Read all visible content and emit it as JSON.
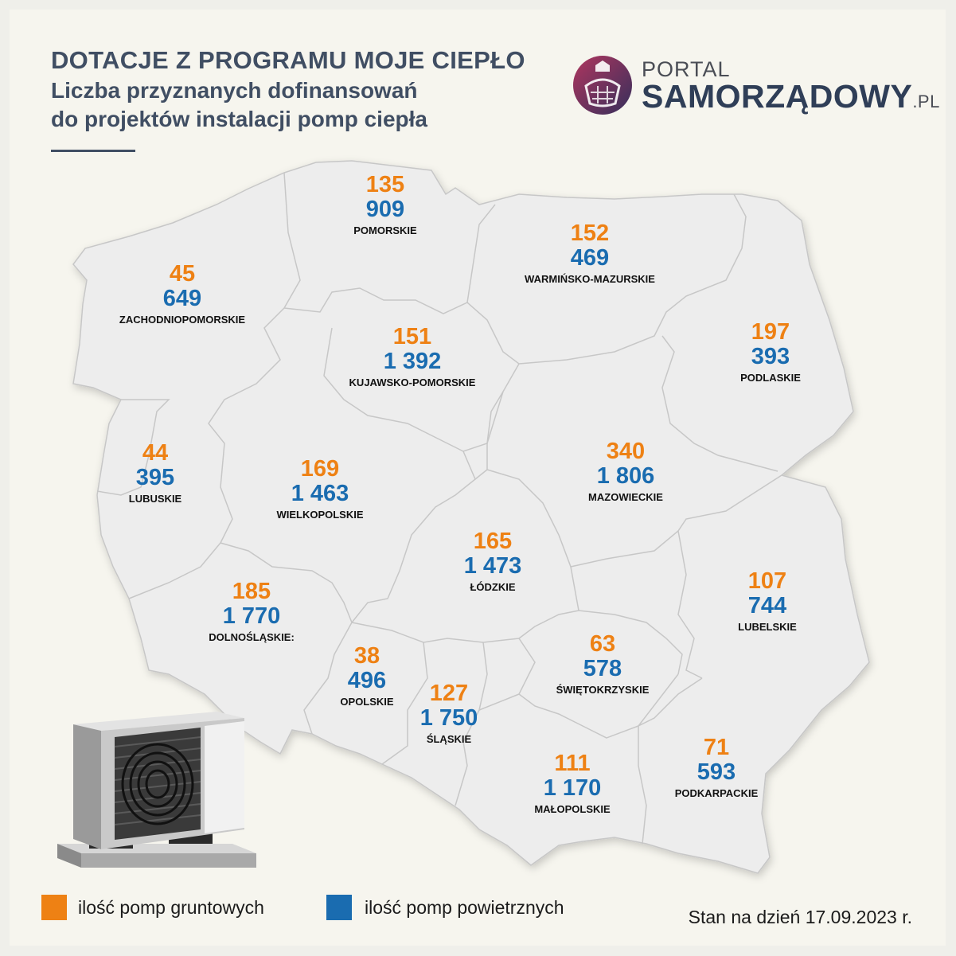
{
  "header": {
    "title": "DOTACJE Z PROGRAMU MOJE CIEPŁO",
    "subtitle_line1": "Liczba przyznanych dofinansowań",
    "subtitle_line2": "do projektów instalacji pomp ciepła"
  },
  "logo": {
    "top": "PORTAL",
    "main": "SAMORZĄDOWY",
    "suffix": ".PL"
  },
  "colors": {
    "ground": "#ee8114",
    "air": "#1a6cb0",
    "title": "#404e63",
    "map_fill": "#ededed"
  },
  "regions": [
    {
      "name": "POMORSKIE",
      "ground": "135",
      "air": "909"
    },
    {
      "name": "ZACHODNIOPOMORSKIE",
      "ground": "45",
      "air": "649"
    },
    {
      "name": "WARMIŃSKO-MAZURSKIE",
      "ground": "152",
      "air": "469"
    },
    {
      "name": "KUJAWSKO-POMORSKIE",
      "ground": "151",
      "air": "1 392"
    },
    {
      "name": "PODLASKIE",
      "ground": "197",
      "air": "393"
    },
    {
      "name": "LUBUSKIE",
      "ground": "44",
      "air": "395"
    },
    {
      "name": "WIELKOPOLSKIE",
      "ground": "169",
      "air": "1 463"
    },
    {
      "name": "MAZOWIECKIE",
      "ground": "340",
      "air": "1 806"
    },
    {
      "name": "ŁÓDZKIE",
      "ground": "165",
      "air": "1 473"
    },
    {
      "name": "DOLNOŚLĄSKIE:",
      "ground": "185",
      "air": "1 770"
    },
    {
      "name": "LUBELSKIE",
      "ground": "107",
      "air": "744"
    },
    {
      "name": "OPOLSKIE",
      "ground": "38",
      "air": "496"
    },
    {
      "name": "ŚWIĘTOKRZYSKIE",
      "ground": "63",
      "air": "578"
    },
    {
      "name": "ŚLĄSKIE",
      "ground": "127",
      "air": "1 750"
    },
    {
      "name": "PODKARPACKIE",
      "ground": "71",
      "air": "593"
    },
    {
      "name": "MAŁOPOLSKIE",
      "ground": "111",
      "air": "1 170"
    }
  ],
  "legend": {
    "ground_label": "ilość pomp gruntowych",
    "air_label": "ilość pomp powietrznych"
  },
  "footer": {
    "date": "Stan na dzień 17.09.2023 r."
  },
  "illustration": {
    "icon": "heat-pump-icon"
  }
}
